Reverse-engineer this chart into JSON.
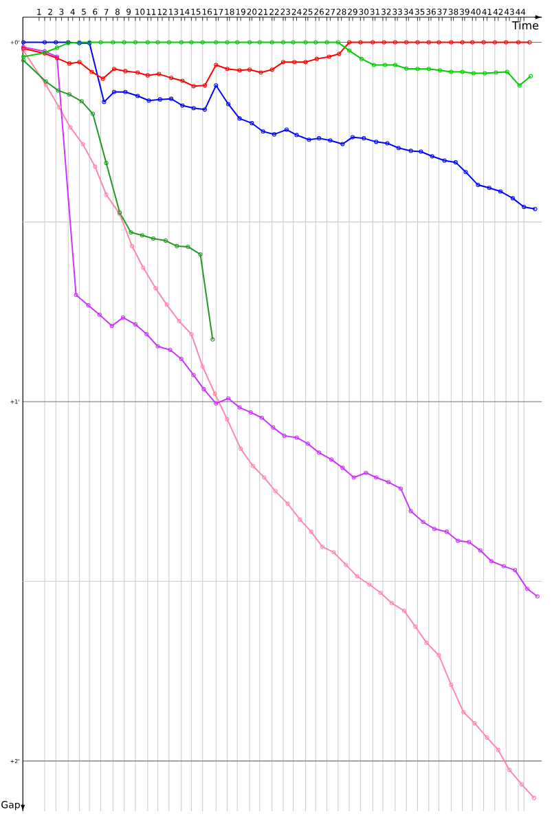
{
  "chart_data": {
    "type": "line",
    "xlabel": "Time",
    "ylabel": "Gap",
    "xlim": [
      -0.45,
      45.9
    ],
    "ylim": [
      2.14,
      -0.07
    ],
    "grid": true,
    "marker": "circle",
    "line_style": "solid",
    "xticks": [
      {
        "value": 1.5,
        "label": null
      },
      {
        "value": 2.5,
        "label": null
      },
      {
        "value": 3.6,
        "label": null
      },
      {
        "value": 4.6,
        "label": null
      },
      {
        "value": 5.5,
        "label": null
      },
      {
        "value": 6.5,
        "label": null
      },
      {
        "value": 7.6,
        "label": null
      },
      {
        "value": 8.6,
        "label": null
      },
      {
        "value": 9.6,
        "label": null
      },
      {
        "value": 10.7,
        "label": null
      },
      {
        "value": 11.6,
        "label": null
      },
      {
        "value": 12.6,
        "label": null
      },
      {
        "value": 13.7,
        "label": null
      },
      {
        "value": 14.6,
        "label": null
      },
      {
        "value": 15.6,
        "label": null
      },
      {
        "value": 16.8,
        "label": null
      },
      {
        "value": 17.8,
        "label": null
      },
      {
        "value": 18.7,
        "label": null
      },
      {
        "value": 19.8,
        "label": null
      },
      {
        "value": 20.7,
        "label": null
      },
      {
        "value": 21.8,
        "label": null
      },
      {
        "value": 22.8,
        "label": null
      },
      {
        "value": 23.7,
        "label": null
      },
      {
        "value": 24.8,
        "label": null
      },
      {
        "value": 25.7,
        "label": null
      },
      {
        "value": 26.7,
        "label": null
      },
      {
        "value": 27.7,
        "label": null
      },
      {
        "value": 28.7,
        "label": null
      },
      {
        "value": 29.7,
        "label": null
      },
      {
        "value": 30.8,
        "label": null
      },
      {
        "value": 31.7,
        "label": null
      },
      {
        "value": 32.8,
        "label": null
      },
      {
        "value": 33.8,
        "label": null
      },
      {
        "value": 34.8,
        "label": null
      },
      {
        "value": 35.8,
        "label": null
      },
      {
        "value": 36.7,
        "label": null
      },
      {
        "value": 37.8,
        "label": null
      },
      {
        "value": 38.8,
        "label": null
      },
      {
        "value": 39.7,
        "label": null
      },
      {
        "value": 40.7,
        "label": null
      },
      {
        "value": 41.7,
        "label": null
      },
      {
        "value": 42.7,
        "label": null
      },
      {
        "value": 43.8,
        "label": null
      },
      {
        "value": 44.3,
        "label": null
      },
      1,
      2,
      3,
      4,
      5,
      6,
      7,
      8,
      9,
      10,
      11,
      12,
      13,
      14,
      15,
      16,
      17,
      18,
      19,
      20,
      21,
      22,
      23,
      24,
      25,
      26,
      27,
      28,
      29,
      30,
      31,
      32,
      33,
      34,
      35,
      36,
      37,
      38,
      39,
      40,
      41,
      42,
      43,
      44
    ],
    "yticks": [
      {
        "value": 0,
        "label": "+0'"
      },
      {
        "value": 0.5,
        "label": null
      },
      {
        "value": 1,
        "label": "+1'"
      },
      {
        "value": 1.5,
        "label": null
      },
      {
        "value": 2,
        "label": "+2'"
      }
    ],
    "series": [
      {
        "color": "#ff88aa",
        "x": [
          -0.4,
          1.6,
          2.8,
          3.8,
          4.9,
          6.0,
          7.0,
          8.2,
          9.3,
          10.3,
          11.4,
          12.4,
          13.5,
          14.6,
          15.6,
          16.7,
          17.8,
          19.0,
          20.1,
          21.1,
          22.1,
          23.2,
          24.3,
          25.3,
          26.3,
          27.3,
          28.4,
          29.4,
          30.5,
          31.5,
          32.5,
          33.6,
          34.6,
          35.6,
          36.7,
          37.8,
          38.9,
          39.9,
          41.0,
          42.0,
          43.0,
          44.1,
          45.2
        ],
        "values": [
          0.023,
          0.118,
          0.181,
          0.237,
          0.283,
          0.346,
          0.424,
          0.478,
          0.567,
          0.627,
          0.684,
          0.73,
          0.776,
          0.812,
          0.902,
          0.978,
          1.049,
          1.131,
          1.179,
          1.211,
          1.249,
          1.284,
          1.328,
          1.362,
          1.404,
          1.419,
          1.454,
          1.486,
          1.509,
          1.532,
          1.561,
          1.582,
          1.626,
          1.671,
          1.706,
          1.788,
          1.864,
          1.895,
          1.935,
          1.969,
          2.025,
          2.065,
          2.103
        ]
      },
      {
        "color": "#cc33ff",
        "x": [
          -0.4,
          1.5,
          2.6,
          4.3,
          5.4,
          6.4,
          7.5,
          8.5,
          9.6,
          10.6,
          11.6,
          12.7,
          13.7,
          14.8,
          15.7,
          16.8,
          17.9,
          18.9,
          19.9,
          20.9,
          21.9,
          22.9,
          24.0,
          25.0,
          26.0,
          27.1,
          28.1,
          29.1,
          30.2,
          31.1,
          32.2,
          33.3,
          34.2,
          35.3,
          36.3,
          37.4,
          38.4,
          39.4,
          40.4,
          41.4,
          42.5,
          43.5,
          44.6,
          45.5
        ],
        "values": [
          0.013,
          0.025,
          0.04,
          0.703,
          0.732,
          0.758,
          0.789,
          0.766,
          0.785,
          0.812,
          0.846,
          0.856,
          0.881,
          0.926,
          0.965,
          1.005,
          0.991,
          1.016,
          1.03,
          1.045,
          1.072,
          1.095,
          1.1,
          1.117,
          1.142,
          1.161,
          1.184,
          1.211,
          1.198,
          1.211,
          1.224,
          1.242,
          1.305,
          1.335,
          1.354,
          1.362,
          1.387,
          1.391,
          1.414,
          1.444,
          1.458,
          1.469,
          1.521,
          1.542
        ]
      },
      {
        "color": "#229922",
        "x": [
          -0.4,
          1.6,
          2.7,
          3.7,
          4.8,
          5.8,
          7.0,
          8.2,
          9.2,
          10.2,
          11.2,
          12.3,
          13.3,
          14.3,
          15.4,
          16.5
        ],
        "values": [
          0.05,
          0.109,
          0.134,
          0.145,
          0.164,
          0.199,
          0.336,
          0.474,
          0.529,
          0.537,
          0.546,
          0.552,
          0.567,
          0.569,
          0.59,
          0.827
        ]
      },
      {
        "color": "#0000ff",
        "x": [
          -0.4,
          1.5,
          2.5,
          3.6,
          4.6,
          5.5,
          6.8,
          7.7,
          8.7,
          9.8,
          10.8,
          11.8,
          12.8,
          13.8,
          14.8,
          15.8,
          16.8,
          17.9,
          18.9,
          20.0,
          21.0,
          22.0,
          23.1,
          24.0,
          25.1,
          26.0,
          27.0,
          28.1,
          29.0,
          30.0,
          31.1,
          32.1,
          33.1,
          34.2,
          35.1,
          36.1,
          37.2,
          38.2,
          39.1,
          40.2,
          41.2,
          42.2,
          43.3,
          44.3,
          45.3
        ],
        "values": [
          0,
          0,
          0,
          0,
          0.002,
          0.002,
          0.166,
          0.138,
          0.138,
          0.149,
          0.162,
          0.159,
          0.157,
          0.176,
          0.183,
          0.187,
          0.12,
          0.172,
          0.212,
          0.225,
          0.248,
          0.256,
          0.243,
          0.258,
          0.271,
          0.267,
          0.273,
          0.283,
          0.264,
          0.267,
          0.277,
          0.281,
          0.294,
          0.302,
          0.304,
          0.317,
          0.329,
          0.334,
          0.361,
          0.397,
          0.405,
          0.415,
          0.434,
          0.458,
          0.464
        ]
      },
      {
        "color": "#ff0000",
        "x": [
          -0.4,
          1.5,
          2.6,
          3.7,
          4.6,
          5.7,
          6.7,
          7.7,
          8.7,
          9.8,
          10.7,
          11.7,
          12.8,
          13.8,
          14.8,
          15.8,
          16.8,
          17.8,
          18.9,
          19.8,
          20.8,
          21.8,
          22.8,
          23.8,
          24.8,
          25.8,
          26.9,
          27.8,
          28.7,
          29.7,
          30.8,
          31.8,
          32.8,
          33.8,
          34.8,
          35.8,
          36.7,
          37.8,
          38.8,
          39.7,
          40.7,
          41.7,
          42.7,
          43.8,
          44.8
        ],
        "values": [
          0.017,
          0.031,
          0.044,
          0.059,
          0.055,
          0.082,
          0.101,
          0.074,
          0.08,
          0.084,
          0.092,
          0.088,
          0.099,
          0.107,
          0.122,
          0.12,
          0.063,
          0.074,
          0.078,
          0.076,
          0.084,
          0.076,
          0.055,
          0.055,
          0.055,
          0.046,
          0.04,
          0.032,
          0,
          0,
          0,
          0,
          0,
          0,
          0,
          0,
          0,
          0,
          0,
          0,
          0,
          0,
          0,
          0,
          0
        ]
      },
      {
        "color": "#00cc00",
        "x": [
          -0.4,
          1.5,
          2.6,
          3.6,
          4.6,
          5.5,
          6.5,
          7.6,
          8.6,
          9.6,
          10.7,
          11.6,
          12.6,
          13.7,
          14.6,
          15.6,
          16.8,
          17.8,
          18.7,
          19.8,
          20.7,
          21.8,
          22.8,
          23.7,
          24.8,
          25.7,
          26.7,
          27.7,
          28.7,
          29.8,
          30.9,
          31.9,
          32.8,
          33.8,
          34.8,
          35.8,
          36.8,
          37.8,
          38.8,
          39.8,
          40.8,
          41.8,
          42.8,
          43.9,
          44.9
        ],
        "values": [
          0.04,
          0.029,
          0.015,
          0.002,
          0,
          0,
          0,
          0,
          0,
          0,
          0,
          0,
          0,
          0,
          0,
          0,
          0,
          0,
          0,
          0,
          0,
          0,
          0,
          0,
          0,
          0,
          0,
          0,
          0.023,
          0.046,
          0.063,
          0.063,
          0.063,
          0.073,
          0.074,
          0.074,
          0.078,
          0.082,
          0.082,
          0.086,
          0.086,
          0.084,
          0.082,
          0.12,
          0.094
        ]
      }
    ]
  }
}
